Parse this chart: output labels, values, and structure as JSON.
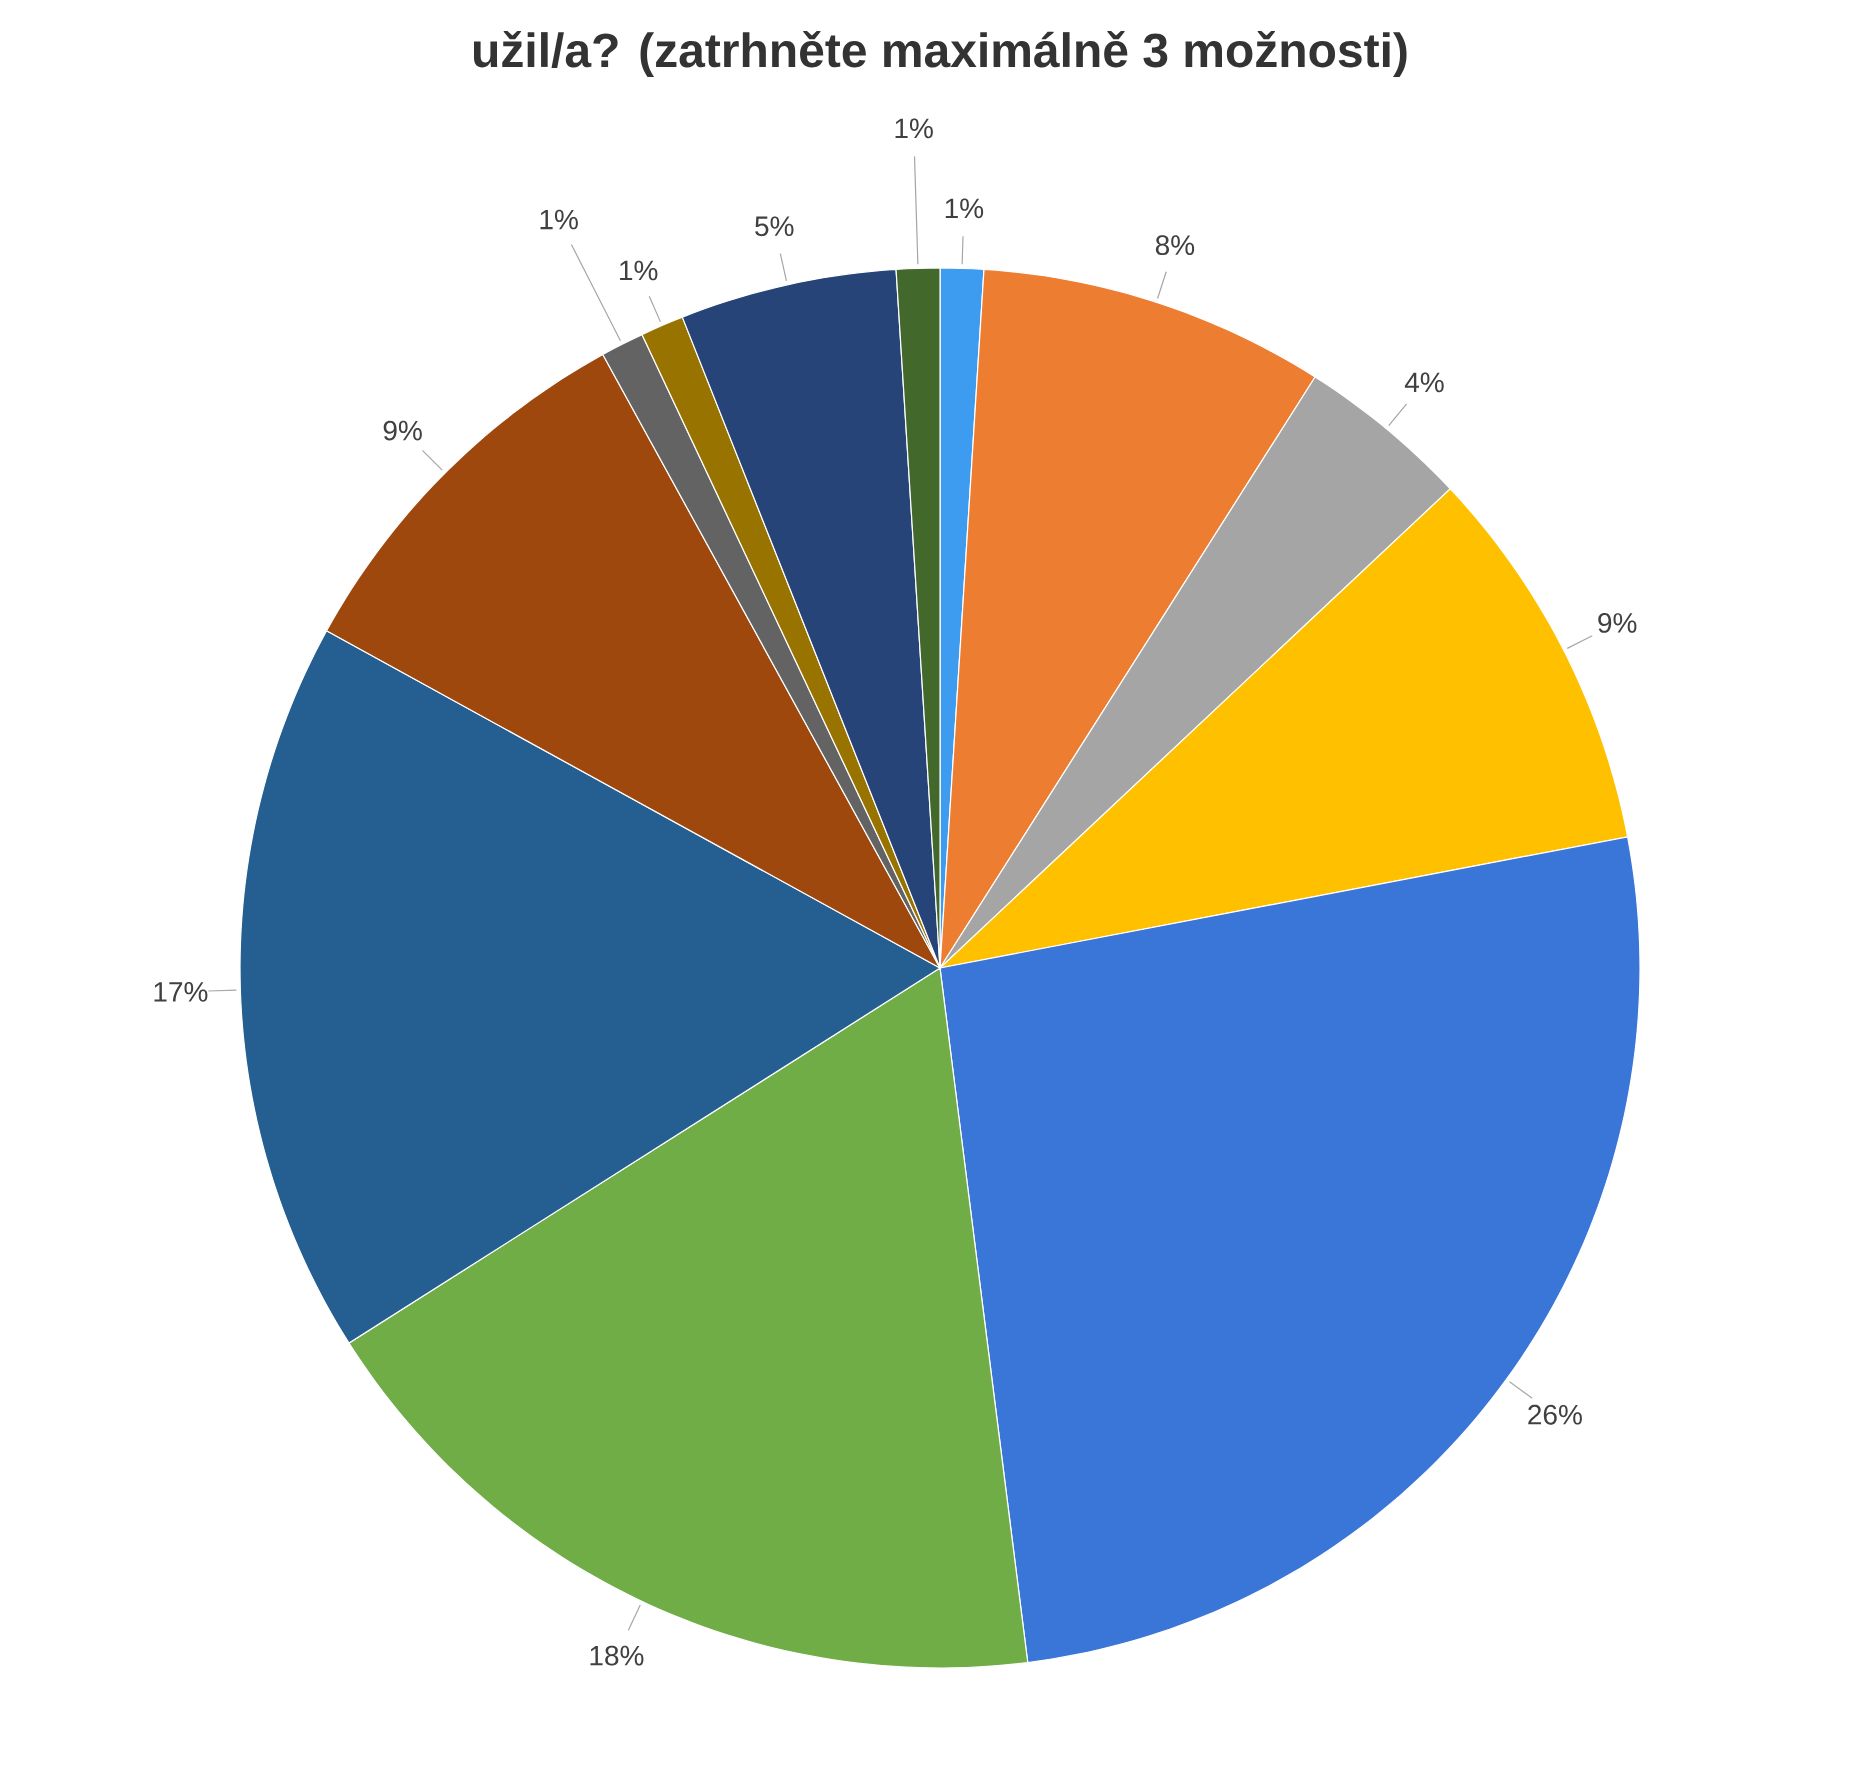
{
  "chart_data": {
    "type": "pie",
    "title": "užil/a? (zatrhněte maximálně 3 možnosti)",
    "categories": [
      null,
      null,
      null,
      null,
      null,
      null,
      null,
      null,
      null,
      null,
      null,
      null
    ],
    "values": [
      1,
      8,
      4,
      9,
      26,
      18,
      17,
      9,
      1,
      1,
      5,
      1
    ],
    "colors": [
      "#3d9cf0",
      "#ed7d31",
      "#a5a5a5",
      "#ffc000",
      "#3a75d8",
      "#70ad47",
      "#255e91",
      "#9e480e",
      "#636363",
      "#997300",
      "#264478",
      "#43682b"
    ],
    "value_labels": [
      "1%",
      "8%",
      "4%",
      "9%",
      "26%",
      "18%",
      "17%",
      "9%",
      "1%",
      "1%",
      "5%",
      "1%"
    ]
  }
}
